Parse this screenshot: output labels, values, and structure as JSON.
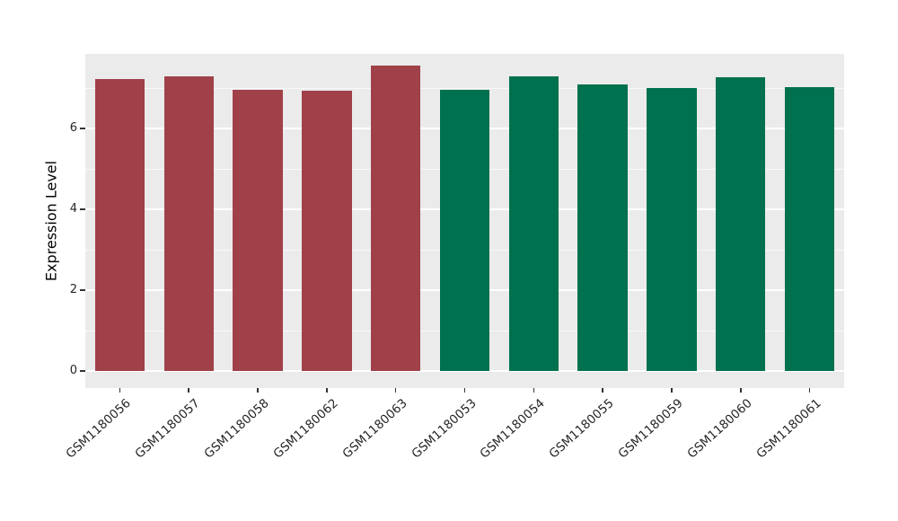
{
  "chart_data": {
    "type": "bar",
    "title": "",
    "xlabel": "",
    "ylabel": "Expression Level",
    "categories": [
      "GSM1180056",
      "GSM1180057",
      "GSM1180058",
      "GSM1180062",
      "GSM1180063",
      "GSM1180053",
      "GSM1180054",
      "GSM1180055",
      "GSM1180059",
      "GSM1180060",
      "GSM1180061"
    ],
    "values": [
      7.22,
      7.29,
      6.96,
      6.93,
      7.56,
      6.96,
      7.29,
      7.09,
      7.0,
      7.27,
      7.02
    ],
    "groups": [
      "group1",
      "group1",
      "group1",
      "group1",
      "group1",
      "group2",
      "group2",
      "group2",
      "group2",
      "group2",
      "group2"
    ],
    "colors": {
      "group1": "#A04049",
      "group2": "#00714E"
    },
    "y_range": [
      -0.42,
      7.85
    ],
    "yticks": [
      0,
      2,
      4,
      6
    ],
    "yticks_minor": [
      1,
      3,
      5,
      7
    ],
    "grid": true,
    "legend_position": "none",
    "panel_bg": "#EBEBEB",
    "grid_color": "#FFFFFF",
    "bar_width_fraction": 0.72
  }
}
